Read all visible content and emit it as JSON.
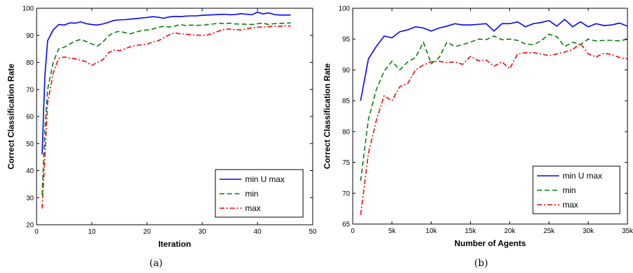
{
  "chart_data": [
    {
      "type": "line",
      "caption": "(a)",
      "xlabel": "Iteration",
      "ylabel": "Correct Classification Rate",
      "xlim": [
        0,
        50
      ],
      "ylim": [
        20,
        100
      ],
      "xticks": [
        0,
        10,
        20,
        30,
        40,
        50
      ],
      "yticks": [
        20,
        30,
        40,
        50,
        60,
        70,
        80,
        90,
        100
      ],
      "xtick_labels": [
        "0",
        "10",
        "20",
        "30",
        "40",
        "50"
      ],
      "ytick_labels": [
        "20",
        "30",
        "40",
        "50",
        "60",
        "70",
        "80",
        "90",
        "100"
      ],
      "legend_position": "bottom-right",
      "series": [
        {
          "name": "min U max",
          "color": "#0000ff",
          "dash": "solid",
          "x": [
            1,
            1.5,
            2,
            3,
            4,
            5,
            6,
            7,
            8,
            9,
            10,
            11,
            12,
            13,
            14,
            15,
            16,
            17,
            18,
            19,
            20,
            21,
            22,
            23,
            24,
            25,
            26,
            27,
            28,
            29,
            30,
            31,
            32,
            33,
            34,
            35,
            36,
            37,
            38,
            39,
            40,
            41,
            42,
            43,
            44,
            45,
            46
          ],
          "y": [
            46,
            75,
            88,
            92,
            94,
            93.8,
            94.6,
            94.5,
            95,
            94.3,
            94,
            93.8,
            94.2,
            94.8,
            95.5,
            95.7,
            95.8,
            96,
            96.2,
            96.4,
            96.6,
            96.9,
            96.7,
            96.3,
            96.8,
            97,
            96.9,
            97.1,
            97.2,
            97.2,
            97.4,
            97.5,
            97.6,
            97.7,
            97.8,
            97.6,
            97.7,
            98,
            97.8,
            97.6,
            98.6,
            97.9,
            98.3,
            97.7,
            97.5,
            97.5,
            97.5
          ]
        },
        {
          "name": "min",
          "color": "#008000",
          "dash": "dashed",
          "x": [
            1,
            1.5,
            2,
            3,
            4,
            5,
            6,
            7,
            8,
            9,
            10,
            11,
            12,
            13,
            14,
            15,
            16,
            17,
            18,
            19,
            20,
            21,
            22,
            23,
            24,
            25,
            26,
            27,
            28,
            29,
            30,
            31,
            32,
            33,
            34,
            35,
            36,
            37,
            38,
            39,
            40,
            41,
            42,
            43,
            44,
            45,
            46
          ],
          "y": [
            31,
            55,
            70,
            80,
            85,
            85.6,
            86.8,
            87.9,
            88.5,
            87.7,
            86.8,
            86,
            87.5,
            89.8,
            91,
            91.5,
            91,
            90.6,
            91.2,
            91.8,
            92,
            92.3,
            93,
            93.3,
            93.1,
            93.4,
            94,
            93.6,
            93.8,
            93.7,
            93.7,
            94,
            94.2,
            94.5,
            94.3,
            94.5,
            94.2,
            94.2,
            94.1,
            94,
            94.3,
            94.5,
            94,
            94.3,
            94.4,
            94.5,
            94.6
          ]
        },
        {
          "name": "max",
          "color": "#ff0000",
          "dash": "dashdot",
          "x": [
            1,
            1.5,
            2,
            3,
            4,
            5,
            6,
            7,
            8,
            9,
            10,
            11,
            12,
            13,
            14,
            15,
            16,
            17,
            18,
            19,
            20,
            21,
            22,
            23,
            24,
            25,
            26,
            27,
            28,
            29,
            30,
            31,
            32,
            33,
            34,
            35,
            36,
            37,
            38,
            39,
            40,
            41,
            42,
            43,
            44,
            45,
            46
          ],
          "y": [
            26,
            45,
            65,
            76,
            81.5,
            82,
            81.6,
            81.3,
            80.8,
            80.2,
            78.9,
            80,
            81,
            83.5,
            84.6,
            84.3,
            85,
            85.8,
            86.3,
            86.5,
            86.7,
            87.5,
            88,
            89,
            90.2,
            90.9,
            90.6,
            90.4,
            90.2,
            90.1,
            89.9,
            90.2,
            90.8,
            91.6,
            92.2,
            92.3,
            92.1,
            92,
            92.4,
            92.8,
            93,
            93.1,
            93.2,
            93.4,
            93.3,
            93.5,
            93.4
          ]
        }
      ]
    },
    {
      "type": "line",
      "caption": "(b)",
      "xlabel": "Number of Agents",
      "ylabel": "Correct Classification Rate",
      "xlim": [
        0,
        35000
      ],
      "ylim": [
        65,
        100
      ],
      "xticks": [
        0,
        5000,
        10000,
        15000,
        20000,
        25000,
        30000,
        35000
      ],
      "yticks": [
        65,
        70,
        75,
        80,
        85,
        90,
        95,
        100
      ],
      "xtick_labels": [
        "0",
        "5k",
        "10k",
        "15k",
        "20k",
        "25k",
        "30k",
        "35k"
      ],
      "ytick_labels": [
        "65",
        "70",
        "75",
        "80",
        "85",
        "90",
        "95",
        "100"
      ],
      "legend_position": "bottom-right",
      "series": [
        {
          "name": "min U max",
          "color": "#0000ff",
          "dash": "solid",
          "x": [
            1000,
            2000,
            3000,
            4000,
            5000,
            6000,
            7000,
            8000,
            9000,
            10000,
            11000,
            12000,
            13000,
            14000,
            15000,
            16000,
            17000,
            18000,
            19000,
            20000,
            21000,
            22000,
            23000,
            24000,
            25000,
            26000,
            27000,
            28000,
            29000,
            30000,
            31000,
            32000,
            33000,
            34000,
            35000
          ],
          "y": [
            85,
            91.8,
            93.8,
            95.5,
            95.2,
            96.2,
            96.5,
            97,
            96.8,
            96.3,
            96.8,
            97.1,
            97.5,
            97.3,
            97.3,
            97.4,
            97.5,
            96.3,
            97.5,
            97.5,
            97.8,
            97,
            97.5,
            97.7,
            98,
            97.1,
            98.2,
            97,
            97.8,
            97,
            97.5,
            97.2,
            97.3,
            97.6,
            97.1
          ]
        },
        {
          "name": "min",
          "color": "#008000",
          "dash": "dashed",
          "x": [
            1000,
            2000,
            3000,
            4000,
            5000,
            6000,
            7000,
            8000,
            9000,
            10000,
            11000,
            12000,
            13000,
            14000,
            15000,
            16000,
            17000,
            18000,
            19000,
            20000,
            21000,
            22000,
            23000,
            24000,
            25000,
            26000,
            27000,
            28000,
            29000,
            30000,
            31000,
            32000,
            33000,
            34000,
            35000
          ],
          "y": [
            72,
            82,
            86.8,
            89.8,
            91.4,
            90,
            91.3,
            92,
            94.5,
            91,
            92,
            94.5,
            93.8,
            94.1,
            94.5,
            95,
            94.9,
            95.5,
            94.9,
            95,
            94.8,
            94.2,
            94.1,
            94.7,
            95.8,
            95.4,
            93.8,
            94.5,
            94.1,
            95,
            94.7,
            94.8,
            94.8,
            94.7,
            95
          ]
        },
        {
          "name": "max",
          "color": "#ff0000",
          "dash": "dashdot",
          "x": [
            1000,
            2000,
            3000,
            4000,
            5000,
            6000,
            7000,
            8000,
            9000,
            10000,
            11000,
            12000,
            13000,
            14000,
            15000,
            16000,
            17000,
            18000,
            19000,
            20000,
            21000,
            22000,
            23000,
            24000,
            25000,
            26000,
            27000,
            28000,
            29000,
            30000,
            31000,
            32000,
            33000,
            34000,
            35000
          ],
          "y": [
            66.5,
            76.5,
            81.8,
            85.8,
            85,
            87.3,
            87.8,
            90,
            90.8,
            91.3,
            91.4,
            91.2,
            91.3,
            90.9,
            92.2,
            91.5,
            91.6,
            90.6,
            91.3,
            90.2,
            92.6,
            92.8,
            92.8,
            92.6,
            92.3,
            92.6,
            92.9,
            93.3,
            94.3,
            92.6,
            92.1,
            92.7,
            92.5,
            92,
            91.8
          ]
        }
      ]
    }
  ]
}
